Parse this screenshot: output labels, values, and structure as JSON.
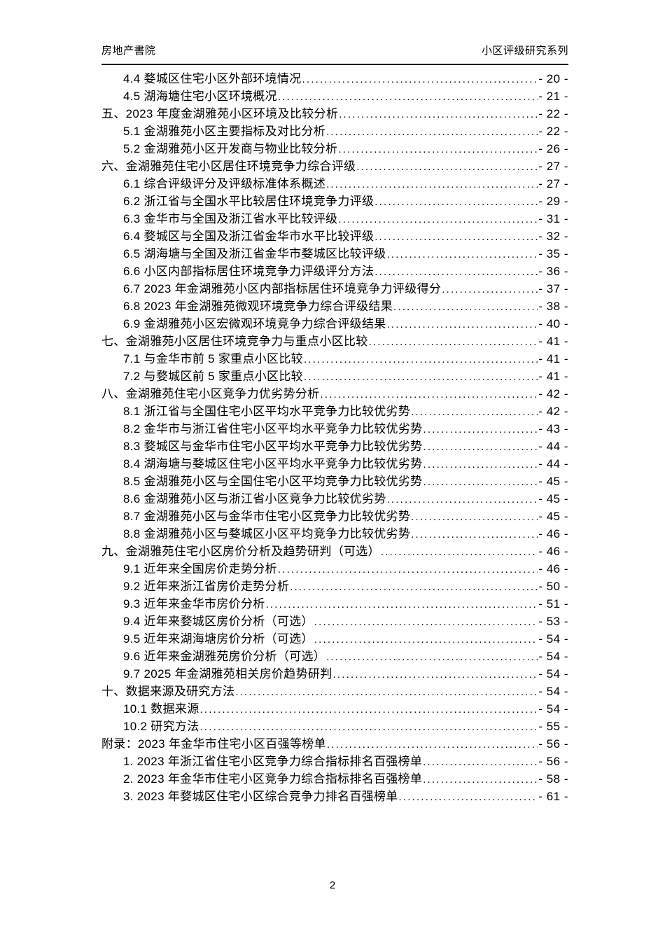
{
  "header": {
    "left": "房地产書院",
    "right": "小区评级研究系列"
  },
  "footer": {
    "page_number": "2"
  },
  "toc": {
    "entries": [
      {
        "level": 1,
        "label": "4.4 婺城区住宅小区外部环境情况",
        "page_label": "- 20 -"
      },
      {
        "level": 1,
        "label": "4.5 湖海塘住宅小区环境概况",
        "page_label": "- 21 -"
      },
      {
        "level": 0,
        "label": "五、2023 年度金湖雅苑小区环境及比较分析",
        "page_label": "- 22 -"
      },
      {
        "level": 1,
        "label": "5.1 金湖雅苑小区主要指标及对比分析",
        "page_label": "- 22 -"
      },
      {
        "level": 1,
        "label": "5.2 金湖雅苑小区开发商与物业比较分析",
        "page_label": "- 26 -"
      },
      {
        "level": 0,
        "label": "六、金湖雅苑住宅小区居住环境竞争力综合评级",
        "page_label": "- 27 -"
      },
      {
        "level": 1,
        "label": "6.1 综合评级评分及评级标准体系概述",
        "page_label": "- 27 -"
      },
      {
        "level": 1,
        "label": "6.2 浙江省与全国水平比较居住环境竞争力评级",
        "page_label": "- 29 -"
      },
      {
        "level": 1,
        "label": "6.3 金华市与全国及浙江省水平比较评级",
        "page_label": "- 31 -"
      },
      {
        "level": 1,
        "label": "6.4 婺城区与全国及浙江省金华市水平比较评级",
        "page_label": "- 32 -"
      },
      {
        "level": 1,
        "label": "6.5 湖海塘与全国及浙江省金华市婺城区比较评级",
        "page_label": "- 35 -"
      },
      {
        "level": 1,
        "label": "6.6 小区内部指标居住环境竞争力评级评分方法",
        "page_label": "- 36 -"
      },
      {
        "level": 1,
        "label": "6.7 2023 年金湖雅苑小区内部指标居住环境竞争力评级得分",
        "page_label": "- 37 -"
      },
      {
        "level": 1,
        "label": "6.8 2023 年金湖雅苑微观环境竞争力综合评级结果",
        "page_label": "- 38 -"
      },
      {
        "level": 1,
        "label": "6.9 金湖雅苑小区宏微观环境竞争力综合评级结果",
        "page_label": "- 40 -"
      },
      {
        "level": 0,
        "label": "七、金湖雅苑小区居住环境竞争力与重点小区比较",
        "page_label": "- 41 -"
      },
      {
        "level": 1,
        "label": "7.1 与金华市前 5 家重点小区比较",
        "page_label": "- 41 -"
      },
      {
        "level": 1,
        "label": "7.2 与婺城区前 5 家重点小区比较",
        "page_label": "- 41 -"
      },
      {
        "level": 0,
        "label": "八、金湖雅苑住宅小区竞争力优劣势分析",
        "page_label": "- 42 -"
      },
      {
        "level": 1,
        "label": "8.1 浙江省与全国住宅小区平均水平竞争力比较优劣势",
        "page_label": "- 42 -"
      },
      {
        "level": 1,
        "label": "8.2 金华市与浙江省住宅小区平均水平竞争力比较优劣势",
        "page_label": "- 43 -"
      },
      {
        "level": 1,
        "label": "8.3 婺城区与金华市住宅小区平均水平竞争力比较优劣势",
        "page_label": "- 44 -"
      },
      {
        "level": 1,
        "label": "8.4 湖海塘与婺城区住宅小区平均水平竞争力比较优劣势",
        "page_label": "- 44 -"
      },
      {
        "level": 1,
        "label": "8.5 金湖雅苑小区与全国住宅小区平均竞争力比较优劣势",
        "page_label": "- 45 -"
      },
      {
        "level": 1,
        "label": "8.6 金湖雅苑小区与浙江省小区竞争力比较优劣势",
        "page_label": "- 45 -"
      },
      {
        "level": 1,
        "label": "8.7 金湖雅苑小区与金华市住宅小区竞争力比较优劣势",
        "page_label": "- 45 -"
      },
      {
        "level": 1,
        "label": "8.8 金湖雅苑小区与婺城区小区平均竞争力比较优劣势",
        "page_label": "- 46 -"
      },
      {
        "level": 0,
        "label": "九、金湖雅苑住宅小区房价分析及趋势研判（可选） ",
        "page_label": "- 46 -"
      },
      {
        "level": 1,
        "label": "9.1 近年来全国房价走势分析",
        "page_label": "- 46 -"
      },
      {
        "level": 1,
        "label": "9.2 近年来浙江省房价走势分析",
        "page_label": "- 50 -"
      },
      {
        "level": 1,
        "label": "9.3 近年来金华市房价分析",
        "page_label": "- 51 -"
      },
      {
        "level": 1,
        "label": "9.4 近年来婺城区房价分析（可选） ",
        "page_label": "- 53 -"
      },
      {
        "level": 1,
        "label": "9.5 近年来湖海塘房价分析（可选） ",
        "page_label": "- 54 -"
      },
      {
        "level": 1,
        "label": "9.6 近年来金湖雅苑房价分析（可选） ",
        "page_label": "- 54 -"
      },
      {
        "level": 1,
        "label": "9.7 2025 年金湖雅苑相关房价趋势研判",
        "page_label": "- 54 -"
      },
      {
        "level": 0,
        "label": "十、数据来源及研究方法",
        "page_label": "- 54 -"
      },
      {
        "level": 1,
        "label": "10.1 数据来源",
        "page_label": "- 54 -"
      },
      {
        "level": 1,
        "label": "10.2 研究方法",
        "page_label": "- 55 -"
      },
      {
        "level": 0,
        "label": "附录：2023 年金华市住宅小区百强等榜单",
        "page_label": "- 56 -"
      },
      {
        "level": 1,
        "label": "1. 2023 年浙江省住宅小区竞争力综合指标排名百强榜单",
        "page_label": "- 56 -"
      },
      {
        "level": 1,
        "label": "2. 2023 年金华市住宅小区竞争力综合指标排名百强榜单",
        "page_label": "- 58 -"
      },
      {
        "level": 1,
        "label": "3. 2023 年婺城区住宅小区综合竞争力排名百强榜单",
        "page_label": "- 61 -"
      }
    ]
  }
}
